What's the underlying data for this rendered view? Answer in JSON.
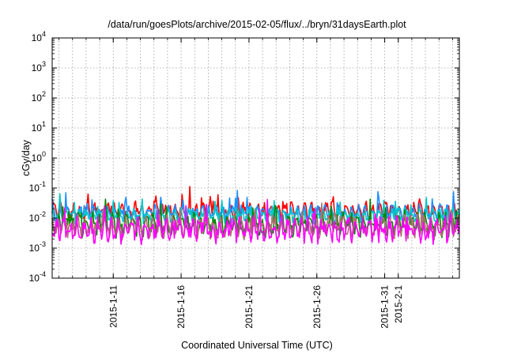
{
  "chart_data": {
    "type": "line",
    "title": "/data/run/goesPlots/archive/2015-02-05/flux/../bryn/31daysEarth.plot",
    "xlabel": "Coordinated Universal Time (UTC)",
    "ylabel": "cGy/day",
    "yscale": "log",
    "ylim": [
      0.0001,
      10000
    ],
    "xlim": [
      "2015-01-06T12:00",
      "2015-02-05T12:00"
    ],
    "grid": true,
    "y_ticks": [
      {
        "base": "10",
        "exp": "-4"
      },
      {
        "base": "10",
        "exp": "-3"
      },
      {
        "base": "10",
        "exp": "-2"
      },
      {
        "base": "10",
        "exp": "-1"
      },
      {
        "base": "10",
        "exp": "0"
      },
      {
        "base": "10",
        "exp": "1"
      },
      {
        "base": "10",
        "exp": "2"
      },
      {
        "base": "10",
        "exp": "3"
      },
      {
        "base": "10",
        "exp": "4"
      }
    ],
    "x_ticks": [
      {
        "date": "2015-01-11",
        "label": "2015-1-11"
      },
      {
        "date": "2015-01-16",
        "label": "2015-1-16"
      },
      {
        "date": "2015-01-21",
        "label": "2015-1-21"
      },
      {
        "date": "2015-01-26",
        "label": "2015-1-26"
      },
      {
        "date": "2015-01-31",
        "label": "2015-1-31"
      },
      {
        "date": "2015-02-01",
        "label": "2015-2-1"
      }
    ],
    "series": [
      {
        "color": "#ff0000",
        "base": 0.017,
        "spread": 0.35
      },
      {
        "color": "#1e90ff",
        "base": 0.015,
        "spread": 0.32
      },
      {
        "color": "#00c8c8",
        "base": 0.012,
        "spread": 0.3
      },
      {
        "color": "#008800",
        "base": 0.006,
        "spread": 0.45
      },
      {
        "color": "#b07070",
        "base": 0.005,
        "spread": 0.45
      },
      {
        "color": "#ff00ff",
        "base": 0.004,
        "spread": 0.5
      }
    ]
  }
}
